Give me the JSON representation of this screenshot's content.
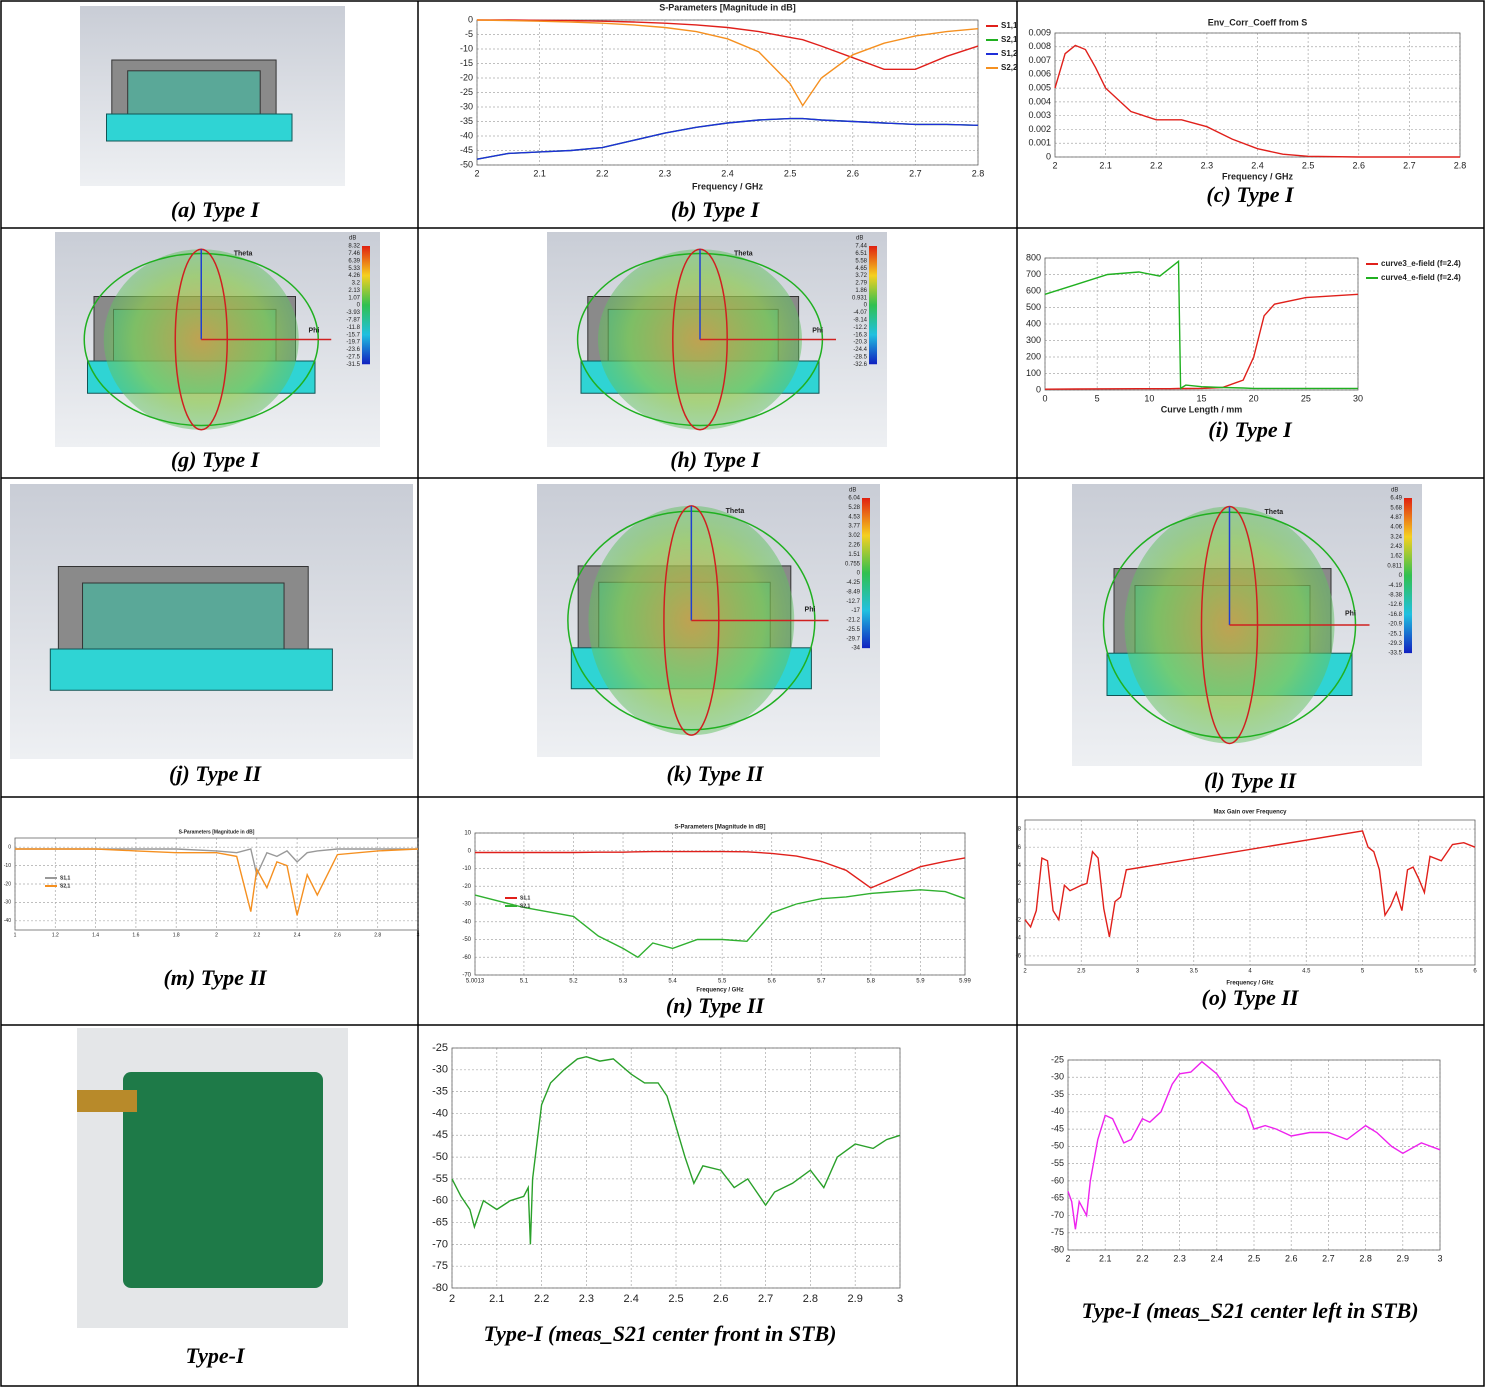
{
  "captions": [
    "(a) Type I",
    "(b) Type I",
    "(c) Type I",
    "(g) Type I",
    "(h) Type I",
    "(i) Type I",
    "(j) Type II",
    "(k) Type II",
    "(l) Type II",
    "(m) Type II",
    "(n) Type II",
    "(o) Type II",
    "Type-I",
    "Type-I (meas_S21 center front in STB)",
    "Type-I (meas_S21 center left in STB)"
  ],
  "render_labels": {
    "theta": "Theta",
    "phi": "Phi"
  },
  "colorbars": {
    "g": {
      "unit": "dB",
      "labels": [
        8.32,
        7.46,
        6.39,
        5.33,
        4.26,
        3.2,
        2.13,
        1.07,
        0,
        -3.93,
        -7.87,
        -11.8,
        -15.7,
        -19.7,
        -23.6,
        -27.5,
        -31.5
      ]
    },
    "h": {
      "unit": "dB",
      "labels": [
        7.44,
        6.51,
        5.58,
        4.65,
        3.72,
        2.79,
        1.86,
        0.931,
        0,
        -4.07,
        -8.14,
        -12.2,
        -16.3,
        -20.3,
        -24.4,
        -28.5,
        -32.6
      ]
    },
    "k": {
      "unit": "dB",
      "labels": [
        6.04,
        5.28,
        4.53,
        3.77,
        3.02,
        2.26,
        1.51,
        0.755,
        0,
        -4.25,
        -8.49,
        -12.7,
        -17,
        -21.2,
        -25.5,
        -29.7,
        -34
      ]
    },
    "l": {
      "unit": "dB",
      "labels": [
        6.49,
        5.68,
        4.87,
        4.06,
        3.24,
        2.43,
        1.62,
        0.811,
        0,
        -4.19,
        -8.38,
        -12.6,
        -16.8,
        -20.9,
        -25.1,
        -29.3,
        -33.5
      ]
    }
  },
  "chart_data": [
    {
      "type": "line",
      "title": "S-Parameters [Magnitude in dB]",
      "xlabel": "Frequency / GHz",
      "legend": "right",
      "grid": true,
      "x": [
        2,
        2.05,
        2.1,
        2.15,
        2.2,
        2.25,
        2.3,
        2.35,
        2.4,
        2.45,
        2.5,
        2.52,
        2.55,
        2.6,
        2.65,
        2.7,
        2.75,
        2.8
      ],
      "series": [
        {
          "name": "S1,1",
          "color": "#e0201b",
          "values": [
            0,
            0,
            -0.1,
            -0.2,
            -0.4,
            -0.7,
            -1.1,
            -1.7,
            -2.6,
            -4,
            -6,
            -6.8,
            -9,
            -13,
            -17,
            -17,
            -12.5,
            -9
          ]
        },
        {
          "name": "S2,1",
          "color": "#20b020",
          "values": [
            -48,
            -46,
            -45.5,
            -45,
            -44,
            -41.5,
            -39,
            -37,
            -35.5,
            -34.5,
            -34,
            -34,
            -34.5,
            -35,
            -35.5,
            -36,
            -36,
            -36.3
          ]
        },
        {
          "name": "S1,2",
          "color": "#1f2fd8",
          "values": [
            -48,
            -46,
            -45.5,
            -45,
            -44,
            -41.5,
            -39,
            -37,
            -35.5,
            -34.5,
            -34,
            -34,
            -34.5,
            -35,
            -35.5,
            -36,
            -36,
            -36.3
          ]
        },
        {
          "name": "S2,2",
          "color": "#f59020",
          "values": [
            0,
            -0.2,
            -0.4,
            -0.7,
            -1.1,
            -1.7,
            -2.6,
            -4,
            -6.5,
            -11,
            -22,
            -29.5,
            -20,
            -12,
            -8,
            -5.5,
            -4,
            -3
          ]
        }
      ],
      "xlim": [
        2,
        2.8
      ],
      "ylim": [
        -50,
        0
      ],
      "xticks": [
        2,
        2.1,
        2.2,
        2.3,
        2.4,
        2.5,
        2.6,
        2.7,
        2.8
      ],
      "yticks": [
        0,
        -5,
        -10,
        -15,
        -20,
        -25,
        -30,
        -35,
        -40,
        -45,
        -50
      ]
    },
    {
      "type": "line",
      "title": "Env_Corr_Coeff from S",
      "xlabel": "Frequency / GHz",
      "grid": true,
      "x": [
        2,
        2.02,
        2.04,
        2.06,
        2.08,
        2.1,
        2.15,
        2.2,
        2.25,
        2.3,
        2.35,
        2.4,
        2.45,
        2.5,
        2.6,
        2.8
      ],
      "series": [
        {
          "color": "#e0201b",
          "values": [
            0.005,
            0.0075,
            0.0081,
            0.0078,
            0.0065,
            0.005,
            0.0033,
            0.0027,
            0.0027,
            0.0022,
            0.0013,
            0.0006,
            0.0002,
            5e-05,
            0,
            0
          ]
        }
      ],
      "xlim": [
        2,
        2.8
      ],
      "ylim": [
        0,
        0.009
      ],
      "xticks": [
        2,
        2.1,
        2.2,
        2.3,
        2.4,
        2.5,
        2.6,
        2.7,
        2.8
      ],
      "yticks": [
        0,
        0.001,
        0.002,
        0.003,
        0.004,
        0.005,
        0.006,
        0.007,
        0.008,
        0.009
      ]
    },
    {
      "type": "line",
      "xlabel": "Curve Length / mm",
      "legend": "right",
      "grid": true,
      "x": [
        0,
        3,
        6,
        9,
        11,
        12,
        12.8,
        13,
        13.5,
        15,
        17,
        19,
        20,
        21,
        22,
        25,
        30
      ],
      "series": [
        {
          "name": "curve3_e-field (f=2.4)",
          "color": "#e0201b",
          "values": [
            5,
            6,
            7,
            8,
            8,
            8,
            9,
            9,
            9,
            10,
            15,
            60,
            200,
            450,
            520,
            560,
            580
          ]
        },
        {
          "name": "curve4_e-field (f=2.4)",
          "color": "#20b020",
          "values": [
            580,
            640,
            700,
            715,
            690,
            740,
            780,
            10,
            30,
            20,
            15,
            12,
            10,
            10,
            10,
            10,
            10
          ]
        }
      ],
      "xlim": [
        0,
        30
      ],
      "ylim": [
        0,
        800
      ],
      "xticks": [
        0,
        5,
        10,
        15,
        20,
        25,
        30
      ],
      "yticks": [
        0,
        100,
        200,
        300,
        400,
        500,
        600,
        700,
        800
      ]
    },
    {
      "type": "line",
      "title": "S-Parameters [Magnitude in dB]",
      "legend": "center left",
      "grid": true,
      "x": [
        1,
        1.2,
        1.4,
        1.6,
        1.8,
        2,
        2.1,
        2.17,
        2.2,
        2.25,
        2.3,
        2.35,
        2.4,
        2.45,
        2.5,
        2.6,
        2.8,
        3
      ],
      "series": [
        {
          "name": "S1,1",
          "color": "#999999",
          "values": [
            -1,
            -1,
            -1,
            -1,
            -1,
            -2,
            -3,
            -1,
            -15,
            -3,
            -5,
            -2,
            -8,
            -3,
            -2,
            -1,
            -1,
            -1
          ]
        },
        {
          "name": "S2,1",
          "color": "#f59020",
          "values": [
            -1,
            -1,
            -1,
            -2,
            -3,
            -3,
            -5,
            -35,
            -12,
            -22,
            -8,
            -10,
            -37,
            -15,
            -26,
            -4,
            -2,
            -1
          ]
        }
      ],
      "xlim": [
        1,
        3
      ],
      "ylim": [
        -45,
        5
      ],
      "xticks": [
        1,
        1.2,
        1.4,
        1.6,
        1.8,
        2,
        2.2,
        2.4,
        2.6,
        2.8,
        3
      ],
      "yticks": [
        0,
        -10,
        -20,
        -30,
        -40
      ]
    },
    {
      "type": "line",
      "title": "S-Parameters [Magnitude in dB]",
      "xlabel": "Frequency / GHz",
      "legend": "center left",
      "grid": true,
      "x": [
        5.0013,
        5.1,
        5.2,
        5.25,
        5.3,
        5.33,
        5.36,
        5.4,
        5.45,
        5.5,
        5.55,
        5.6,
        5.65,
        5.7,
        5.75,
        5.8,
        5.85,
        5.9,
        5.95,
        5.99
      ],
      "series": [
        {
          "name": "S1,1",
          "color": "#e0201b",
          "values": [
            -1,
            -1,
            -1,
            -0.8,
            -0.8,
            -0.6,
            -0.5,
            -0.5,
            -0.5,
            -0.5,
            -0.6,
            -1.5,
            -3,
            -6,
            -11,
            -21,
            -15,
            -9,
            -6,
            -4
          ]
        },
        {
          "name": "S2,1",
          "color": "#30b030",
          "values": [
            -25,
            -32,
            -37,
            -48,
            -55,
            -60,
            -52,
            -55,
            -50,
            -50,
            -51,
            -35,
            -30,
            -27,
            -26,
            -24,
            -23,
            -22,
            -23,
            -27
          ]
        }
      ],
      "xlim": [
        5.0013,
        5.99
      ],
      "ylim": [
        -70,
        10
      ],
      "xticks": [
        5.0013,
        5.1,
        5.2,
        5.3,
        5.4,
        5.5,
        5.6,
        5.7,
        5.8,
        5.9,
        5.99
      ],
      "yticks": [
        10,
        0,
        -10,
        -20,
        -30,
        -40,
        -50,
        -60,
        -70
      ]
    },
    {
      "type": "line",
      "title": "Max Gain over Frequency",
      "xlabel": "Frequency / GHz",
      "grid": true,
      "x": [
        2,
        2.05,
        2.1,
        2.15,
        2.2,
        2.25,
        2.3,
        2.35,
        2.4,
        2.45,
        2.5,
        2.55,
        2.6,
        2.65,
        2.7,
        2.75,
        2.8,
        2.85,
        2.9,
        5,
        5.05,
        5.1,
        5.15,
        5.2,
        5.25,
        5.3,
        5.35,
        5.4,
        5.45,
        5.5,
        5.55,
        5.6,
        5.7,
        5.8,
        5.9,
        6
      ],
      "series": [
        {
          "color": "#e0201b",
          "values": [
            -2,
            -2.8,
            -1,
            4.8,
            4.5,
            -1,
            -2,
            1.8,
            1.2,
            1.5,
            1.8,
            2,
            5.5,
            4.8,
            -0.8,
            -3.9,
            0,
            0.5,
            3.5,
            7.8,
            6,
            5.5,
            3.5,
            -1.5,
            -0.5,
            1,
            -1,
            3.5,
            3.8,
            2.5,
            1,
            5,
            4.5,
            6.3,
            6.5,
            6
          ]
        }
      ],
      "xlim": [
        2,
        6
      ],
      "ylim": [
        -7,
        9
      ],
      "xticks": [
        2,
        2.5,
        3,
        3.5,
        4,
        4.5,
        5,
        5.5,
        6
      ],
      "yticks": [
        -6,
        -4,
        -2,
        0,
        2,
        4,
        6,
        8
      ]
    },
    {
      "type": "line",
      "grid": true,
      "x": [
        2,
        2.02,
        2.04,
        2.05,
        2.07,
        2.1,
        2.13,
        2.16,
        2.17,
        2.175,
        2.18,
        2.2,
        2.22,
        2.25,
        2.28,
        2.3,
        2.33,
        2.36,
        2.4,
        2.43,
        2.46,
        2.48,
        2.5,
        2.52,
        2.54,
        2.56,
        2.6,
        2.63,
        2.66,
        2.7,
        2.72,
        2.76,
        2.8,
        2.83,
        2.86,
        2.9,
        2.94,
        2.97,
        3
      ],
      "series": [
        {
          "color": "#2aa02a",
          "values": [
            -55,
            -59,
            -62,
            -66,
            -60,
            -62,
            -60,
            -59,
            -57,
            -70,
            -55,
            -38,
            -33,
            -30,
            -27.5,
            -27,
            -28,
            -27.5,
            -31,
            -33,
            -33,
            -36,
            -43,
            -50,
            -56,
            -52,
            -53,
            -57,
            -55,
            -61,
            -58,
            -56,
            -53,
            -57,
            -50,
            -47,
            -48,
            -46,
            -45
          ]
        }
      ],
      "xlim": [
        2,
        3
      ],
      "ylim": [
        -80,
        -25
      ],
      "xticks": [
        2,
        2.1,
        2.2,
        2.3,
        2.4,
        2.5,
        2.6,
        2.7,
        2.8,
        2.9,
        3
      ],
      "yticks": [
        -25,
        -30,
        -35,
        -40,
        -45,
        -50,
        -55,
        -60,
        -65,
        -70,
        -75,
        -80
      ]
    },
    {
      "type": "line",
      "grid": true,
      "x": [
        2,
        2.01,
        2.02,
        2.03,
        2.05,
        2.06,
        2.08,
        2.1,
        2.12,
        2.15,
        2.17,
        2.2,
        2.22,
        2.25,
        2.28,
        2.3,
        2.33,
        2.36,
        2.4,
        2.45,
        2.48,
        2.5,
        2.53,
        2.56,
        2.6,
        2.65,
        2.7,
        2.75,
        2.8,
        2.83,
        2.87,
        2.9,
        2.95,
        3
      ],
      "series": [
        {
          "color": "#ee22ee",
          "values": [
            -63,
            -66,
            -74,
            -66,
            -70,
            -60,
            -48,
            -41,
            -42,
            -49,
            -48,
            -42,
            -43,
            -40,
            -32,
            -29,
            -28.5,
            -25.5,
            -29,
            -37,
            -39,
            -45,
            -44,
            -45,
            -47,
            -46,
            -46,
            -48,
            -44,
            -46,
            -50,
            -52,
            -49,
            -51
          ]
        }
      ],
      "xlim": [
        2,
        3
      ],
      "ylim": [
        -80,
        -25
      ],
      "xticks": [
        2,
        2.1,
        2.2,
        2.3,
        2.4,
        2.5,
        2.6,
        2.7,
        2.8,
        2.9,
        3
      ],
      "yticks": [
        -25,
        -30,
        -35,
        -40,
        -45,
        -50,
        -55,
        -60,
        -65,
        -70,
        -75,
        -80
      ]
    }
  ]
}
